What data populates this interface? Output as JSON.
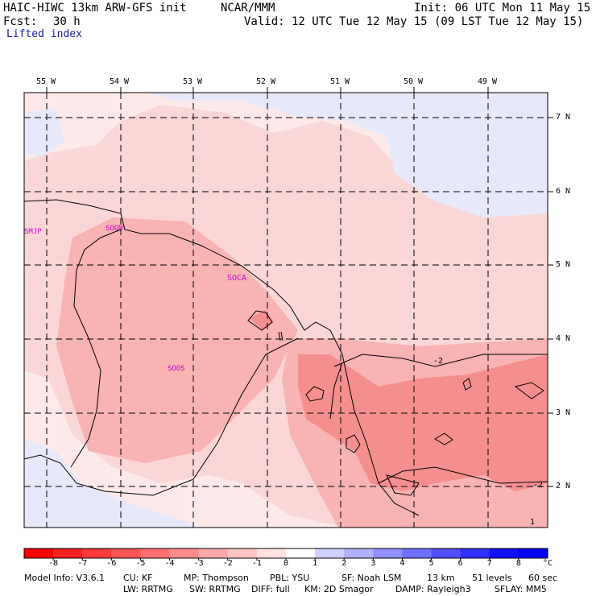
{
  "header": {
    "model": "HAIC-HIWC 13km ARW-GFS init",
    "org": "NCAR/MMM",
    "init": "Init: 06 UTC Mon 11 May 15",
    "fcst_label": "Fcst:",
    "fcst_value": "30 h",
    "valid": "Valid: 12 UTC Tue 12 May 15 (09 LST Tue 12 May 15)",
    "field": "Lifted index"
  },
  "map": {
    "lon_labels": [
      "55 W",
      "54 W",
      "53 W",
      "52 W",
      "51 W",
      "50 W",
      "49 W"
    ],
    "lat_labels": [
      "7 N",
      "6 N",
      "5 N",
      "4 N",
      "3 N",
      "2 N"
    ],
    "stations": [
      "SMJP",
      "SOGM",
      "SOCA",
      "SOOS"
    ],
    "contour_labels": [
      "-2",
      "-2",
      "1"
    ],
    "colors": {
      "li_neg3": "#f58e8e",
      "li_neg2": "#f8b3b3",
      "li_neg1": "#fbd6d6",
      "li_0": "#fde9e9",
      "li_pos1": "#e8e8fb",
      "grid": "#000000",
      "station": "#d000d0"
    }
  },
  "colorbar": {
    "unit": "°C",
    "ticks": [
      "-8",
      "-7",
      "-6",
      "-5",
      "-4",
      "-3",
      "-2",
      "-1",
      "0",
      "1",
      "2",
      "3",
      "4",
      "5",
      "6",
      "7",
      "8"
    ],
    "colors": [
      "#ff0000",
      "#ff2020",
      "#ff3a3a",
      "#ff5555",
      "#ff7070",
      "#ff8c8c",
      "#ffa8a8",
      "#ffc4c4",
      "#ffe2e2",
      "#ffffff",
      "#d0d0ff",
      "#b0b0ff",
      "#9090ff",
      "#7070ff",
      "#5050ff",
      "#3030ff",
      "#1010ff",
      "#0000ff"
    ]
  },
  "footer": {
    "line1": [
      "Model Info: V3.6.1",
      "CU: KF",
      "MP: Thompson",
      "PBL: YSU",
      "SF: Noah LSM",
      "13 km",
      "51 levels",
      "60 sec"
    ],
    "line2": [
      "LW: RRTMG",
      "SW: RRTMG",
      "DIFF: full",
      "KM: 2D Smagor",
      "DAMP: Rayleigh3",
      "SFLAY: MM5"
    ]
  }
}
